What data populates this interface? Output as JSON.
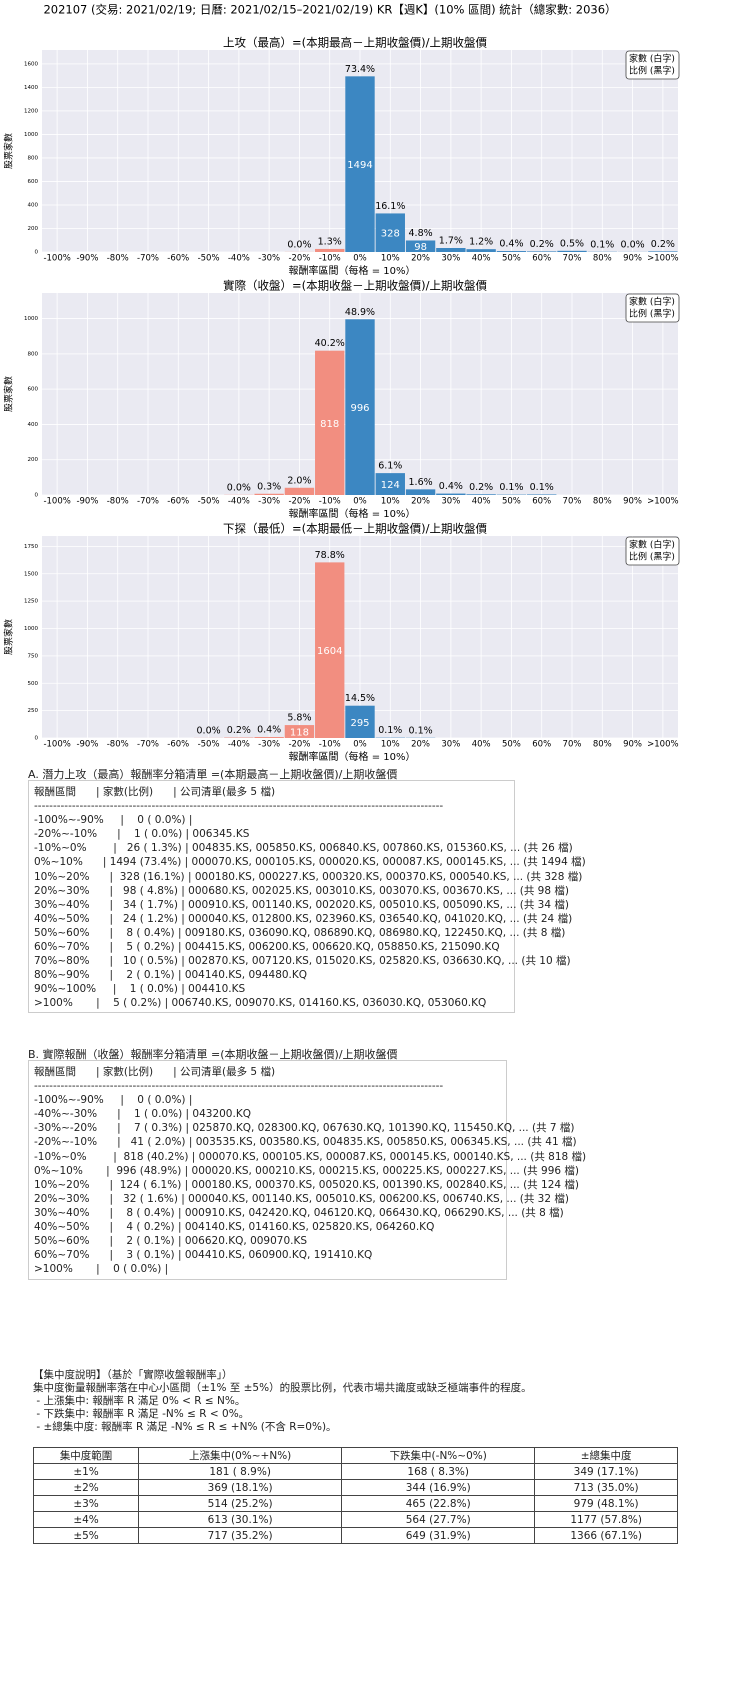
{
  "header": {
    "title": "202107 (交易: 2021/02/19; 日曆: 2021/02/15–2021/02/19) KR【週K】(10% 區間) 統計（總家數: 2036）"
  },
  "chart_data": [
    {
      "type": "bar",
      "title": "上攻（最高）=(本期最高－上期收盤價)/上期收盤價",
      "x_label": "報酬率區間（每格 = 10%）",
      "y_label": "股票家數",
      "legend_note": [
        "家數 (白字)",
        "比例 (黑字)"
      ],
      "categories": [
        "-100%",
        "-90%",
        "-80%",
        "-70%",
        "-60%",
        "-50%",
        "-40%",
        "-30%",
        "-20%",
        "-10%",
        "0%",
        "10%",
        "20%",
        "30%",
        "40%",
        "50%",
        "60%",
        "70%",
        "80%",
        "90%",
        ">100%"
      ],
      "values": [
        0,
        0,
        0,
        0,
        0,
        0,
        0,
        0,
        1,
        26,
        1494,
        328,
        98,
        34,
        24,
        8,
        5,
        10,
        2,
        1,
        5
      ],
      "percent_labels": [
        null,
        null,
        null,
        null,
        null,
        null,
        null,
        null,
        "0.0%",
        "1.3%",
        "73.4%",
        "16.1%",
        "4.8%",
        "1.7%",
        "1.2%",
        "0.4%",
        "0.2%",
        "0.5%",
        "0.1%",
        "0.0%",
        "0.2%"
      ],
      "colors": [
        "#f28e80",
        "#f28e80",
        "#f28e80",
        "#f28e80",
        "#f28e80",
        "#f28e80",
        "#f28e80",
        "#f28e80",
        "#f28e80",
        "#f28e80",
        "#3c87c2",
        "#3c87c2",
        "#3c87c2",
        "#3c87c2",
        "#3c87c2",
        "#3c87c2",
        "#3c87c2",
        "#3c87c2",
        "#3c87c2",
        "#3c87c2",
        "#3c87c2"
      ],
      "ylim": [
        0,
        1718
      ],
      "yticks": [
        0,
        200,
        400,
        600,
        800,
        1000,
        1200,
        1400,
        1600
      ],
      "grid": true
    },
    {
      "type": "bar",
      "title": "實際（收盤）=(本期收盤－上期收盤價)/上期收盤價",
      "x_label": "報酬率區間（每格 = 10%）",
      "y_label": "股票家數",
      "legend_note": [
        "家數 (白字)",
        "比例 (黑字)"
      ],
      "categories": [
        "-100%",
        "-90%",
        "-80%",
        "-70%",
        "-60%",
        "-50%",
        "-40%",
        "-30%",
        "-20%",
        "-10%",
        "0%",
        "10%",
        "20%",
        "30%",
        "40%",
        "50%",
        "60%",
        "70%",
        "80%",
        "90%",
        ">100%"
      ],
      "values": [
        0,
        0,
        0,
        0,
        0,
        0,
        1,
        7,
        41,
        818,
        996,
        124,
        32,
        8,
        4,
        2,
        3,
        0,
        0,
        0,
        0
      ],
      "percent_labels": [
        null,
        null,
        null,
        null,
        null,
        null,
        "0.0%",
        "0.3%",
        "2.0%",
        "40.2%",
        "48.9%",
        "6.1%",
        "1.6%",
        "0.4%",
        "0.2%",
        "0.1%",
        "0.1%",
        null,
        null,
        null,
        null
      ],
      "colors": [
        "#f28e80",
        "#f28e80",
        "#f28e80",
        "#f28e80",
        "#f28e80",
        "#f28e80",
        "#f28e80",
        "#f28e80",
        "#f28e80",
        "#f28e80",
        "#3c87c2",
        "#3c87c2",
        "#3c87c2",
        "#3c87c2",
        "#3c87c2",
        "#3c87c2",
        "#3c87c2",
        "#3c87c2",
        "#3c87c2",
        "#3c87c2",
        "#3c87c2"
      ],
      "ylim": [
        0,
        1145
      ],
      "yticks": [
        0,
        200,
        400,
        600,
        800,
        1000
      ],
      "grid": true
    },
    {
      "type": "bar",
      "title": "下探（最低）=(本期最低－上期收盤價)/上期收盤價",
      "x_label": "報酬率區間（每格 = 10%）",
      "y_label": "股票家數",
      "legend_note": [
        "家數 (白字)",
        "比例 (黑字)"
      ],
      "categories": [
        "-100%",
        "-90%",
        "-80%",
        "-70%",
        "-60%",
        "-50%",
        "-40%",
        "-30%",
        "-20%",
        "-10%",
        "0%",
        "10%",
        "20%",
        "30%",
        "40%",
        "50%",
        "60%",
        "70%",
        "80%",
        "90%",
        ">100%"
      ],
      "values": [
        0,
        0,
        0,
        0,
        0,
        1,
        4,
        9,
        118,
        1604,
        295,
        3,
        2,
        0,
        0,
        0,
        0,
        0,
        0,
        0,
        0
      ],
      "percent_labels": [
        null,
        null,
        null,
        null,
        null,
        "0.0%",
        "0.2%",
        "0.4%",
        "5.8%",
        "78.8%",
        "14.5%",
        "0.1%",
        "0.1%",
        null,
        null,
        null,
        null,
        null,
        null,
        null,
        null
      ],
      "colors": [
        "#f28e80",
        "#f28e80",
        "#f28e80",
        "#f28e80",
        "#f28e80",
        "#f28e80",
        "#f28e80",
        "#f28e80",
        "#f28e80",
        "#f28e80",
        "#3c87c2",
        "#3c87c2",
        "#3c87c2",
        "#3c87c2",
        "#3c87c2",
        "#3c87c2",
        "#3c87c2",
        "#3c87c2",
        "#3c87c2",
        "#3c87c2",
        "#3c87c2"
      ],
      "ylim": [
        0,
        1845
      ],
      "yticks": [
        0,
        250,
        500,
        750,
        1000,
        1250,
        1500,
        1750
      ],
      "grid": true
    }
  ],
  "list_a": {
    "title": "A. 潛力上攻（最高）報酬率分箱清單 =(本期最高－上期收盤價)/上期收盤價",
    "lines": [
      "報酬區間      | 家數(比例)      | 公司清單(最多 5 檔)",
      "------------------------------------------------------------------------------------------------------------",
      "-100%~-90%     |    0 ( 0.0%) |",
      "-20%~-10%      |    1 ( 0.0%) | 006345.KS",
      "-10%~0%        |   26 ( 1.3%) | 004835.KS, 005850.KS, 006840.KS, 007860.KS, 015360.KS, ... (共 26 檔)",
      "0%~10%      | 1494 (73.4%) | 000070.KS, 000105.KS, 000020.KS, 000087.KS, 000145.KS, ... (共 1494 檔)",
      "10%~20%      |  328 (16.1%) | 000180.KS, 000227.KS, 000320.KS, 000370.KS, 000540.KS, ... (共 328 檔)",
      "20%~30%      |   98 ( 4.8%) | 000680.KS, 002025.KS, 003010.KS, 003070.KS, 003670.KS, ... (共 98 檔)",
      "30%~40%      |   34 ( 1.7%) | 000910.KS, 001140.KS, 002020.KS, 005010.KS, 005090.KS, ... (共 34 檔)",
      "40%~50%      |   24 ( 1.2%) | 000040.KS, 012800.KS, 023960.KS, 036540.KQ, 041020.KQ, ... (共 24 檔)",
      "50%~60%      |    8 ( 0.4%) | 009180.KS, 036090.KQ, 086890.KQ, 086980.KQ, 122450.KQ, ... (共 8 檔)",
      "60%~70%      |    5 ( 0.2%) | 004415.KS, 006200.KS, 006620.KQ, 058850.KS, 215090.KQ",
      "70%~80%      |   10 ( 0.5%) | 002870.KS, 007120.KS, 015020.KS, 025820.KS, 036630.KQ, ... (共 10 檔)",
      "80%~90%      |    2 ( 0.1%) | 004140.KS, 094480.KQ",
      "90%~100%     |    1 ( 0.0%) | 004410.KS",
      ">100%       |    5 ( 0.2%) | 006740.KS, 009070.KS, 014160.KS, 036030.KQ, 053060.KQ"
    ]
  },
  "list_b": {
    "title": "B. 實際報酬（收盤）報酬率分箱清單 =(本期收盤－上期收盤價)/上期收盤價",
    "lines": [
      "報酬區間      | 家數(比例)      | 公司清單(最多 5 檔)",
      "------------------------------------------------------------------------------------------------------------",
      "-100%~-90%     |    0 ( 0.0%) |",
      "-40%~-30%      |    1 ( 0.0%) | 043200.KQ",
      "-30%~-20%      |    7 ( 0.3%) | 025870.KQ, 028300.KQ, 067630.KQ, 101390.KQ, 115450.KQ, ... (共 7 檔)",
      "-20%~-10%      |   41 ( 2.0%) | 003535.KS, 003580.KS, 004835.KS, 005850.KS, 006345.KS, ... (共 41 檔)",
      "-10%~0%        |  818 (40.2%) | 000070.KS, 000105.KS, 000087.KS, 000145.KS, 000140.KS, ... (共 818 檔)",
      "0%~10%       |  996 (48.9%) | 000020.KS, 000210.KS, 000215.KS, 000225.KS, 000227.KS, ... (共 996 檔)",
      "10%~20%      |  124 ( 6.1%) | 000180.KS, 000370.KS, 005020.KS, 001390.KS, 002840.KS, ... (共 124 檔)",
      "20%~30%      |   32 ( 1.6%) | 000040.KS, 001140.KS, 005010.KS, 006200.KS, 006740.KS, ... (共 32 檔)",
      "30%~40%      |    8 ( 0.4%) | 000910.KS, 042420.KQ, 046120.KQ, 066430.KQ, 066290.KS, ... (共 8 檔)",
      "40%~50%      |    4 ( 0.2%) | 004140.KS, 014160.KS, 025820.KS, 064260.KQ",
      "50%~60%      |    2 ( 0.1%) | 006620.KQ, 009070.KS",
      "60%~70%      |    3 ( 0.1%) | 004410.KS, 060900.KQ, 191410.KQ",
      ">100%       |    0 ( 0.0%) |"
    ]
  },
  "concentration": {
    "lines": [
      "【集中度說明】（基於「實際收盤報酬率」）",
      "集中度衡量報酬率落在中心小區間（±1% 至 ±5%）的股票比例，代表市場共識度或缺乏極端事件的程度。",
      " - 上漲集中: 報酬率 R 滿足 0% < R ≤ N%。",
      " - 下跌集中: 報酬率 R 滿足 -N% ≤ R < 0%。",
      " - ±總集中度: 報酬率 R 滿足 -N% ≤ R ≤ +N% (不含 R=0%)。"
    ],
    "table": {
      "header": [
        "集中度範圍",
        "上漲集中(0%~+N%)",
        "下跌集中(-N%~0%)",
        "±總集中度"
      ],
      "rows": [
        [
          "±1%",
          "181 ( 8.9%)",
          "168 ( 8.3%)",
          "349 (17.1%)"
        ],
        [
          "±2%",
          "369 (18.1%)",
          "344 (16.9%)",
          "713 (35.0%)"
        ],
        [
          "±3%",
          "514 (25.2%)",
          "465 (22.8%)",
          "979 (48.1%)"
        ],
        [
          "±4%",
          "613 (30.1%)",
          "564 (27.7%)",
          "1177 (57.8%)"
        ],
        [
          "±5%",
          "717 (35.2%)",
          "649 (31.9%)",
          "1366 (67.1%)"
        ]
      ]
    }
  }
}
